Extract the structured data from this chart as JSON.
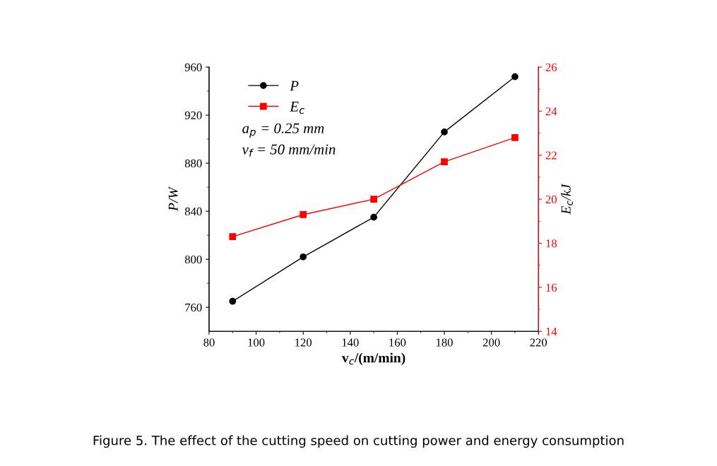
{
  "chart_data": {
    "type": "line",
    "xlabel": "v$_{c}$/(m/min)",
    "ylabel": "P/W",
    "y2label": "E$_{c}$/kJ",
    "x": [
      90,
      120,
      150,
      180,
      210
    ],
    "series": [
      {
        "name": "P",
        "color": "#000000",
        "values": [
          765,
          802,
          835,
          906,
          952
        ],
        "marker": "circle"
      },
      {
        "name": "E$_{c}$",
        "color": "#ff0000",
        "values": [
          18.3,
          19.3,
          20.0,
          21.7,
          22.8
        ],
        "marker": "square",
        "axis": "y2"
      }
    ],
    "xlim": [
      80,
      220
    ],
    "xticks": [
      80,
      100,
      120,
      140,
      160,
      180,
      200,
      220
    ],
    "ylim": [
      740,
      960
    ],
    "yticks": [
      760,
      800,
      840,
      880,
      920,
      960
    ],
    "y2lim": [
      14,
      26
    ],
    "y2ticks": [
      14,
      16,
      18,
      20,
      22,
      24,
      26
    ],
    "legend": "top left",
    "grid": false,
    "line_style": "solid",
    "annotations": [
      "a$_{p}$ = 0.25 mm",
      "v$_{f}$ = 50 mm/min",
      "Figure 5. The effect of the cutting speed on cutting power and energy consumption"
    ]
  }
}
